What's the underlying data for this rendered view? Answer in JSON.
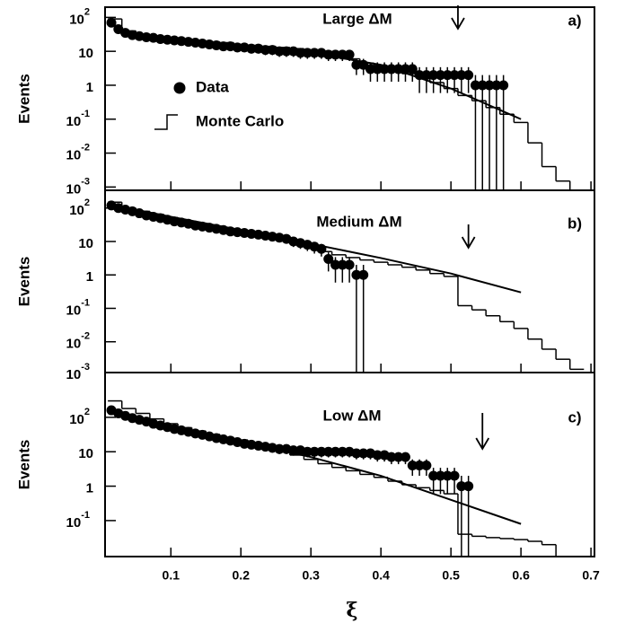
{
  "chart_data": [
    {
      "type": "scatter",
      "title": "Large ΔM",
      "panel": "a)",
      "ylabel": "Events",
      "log_y": true,
      "xlim": [
        0.006,
        0.705
      ],
      "xticks": [
        0.1,
        0.2,
        0.3,
        0.4,
        0.5,
        0.6,
        0.7
      ],
      "ylim": [
        0.0008,
        200
      ],
      "yticks": [
        {
          "value": 100,
          "label": "10",
          "exponent": "2"
        },
        10,
        1,
        {
          "value": 0.1,
          "label": "10",
          "exponent": "-1"
        },
        {
          "value": 0.01,
          "label": "10",
          "exponent": "-2"
        },
        {
          "value": 0.001,
          "label": "10",
          "exponent": "-3"
        }
      ],
      "arrow_x": 0.51,
      "color": "#000000",
      "data": {
        "name": "Data",
        "x": [
          0.015,
          0.025,
          0.035,
          0.045,
          0.055,
          0.065,
          0.075,
          0.085,
          0.095,
          0.105,
          0.115,
          0.125,
          0.135,
          0.145,
          0.155,
          0.165,
          0.175,
          0.185,
          0.195,
          0.205,
          0.215,
          0.225,
          0.235,
          0.245,
          0.255,
          0.265,
          0.275,
          0.285,
          0.295,
          0.305,
          0.315,
          0.325,
          0.335,
          0.345,
          0.355,
          0.365,
          0.375,
          0.385,
          0.395,
          0.405,
          0.415,
          0.425,
          0.435,
          0.445,
          0.455,
          0.465,
          0.475,
          0.485,
          0.495,
          0.505,
          0.515,
          0.525,
          0.535,
          0.545,
          0.555,
          0.565,
          0.575
        ],
        "values": [
          70,
          45,
          35,
          30,
          28,
          26,
          25,
          23,
          22,
          21,
          20,
          19,
          18,
          17,
          16,
          15,
          14,
          14,
          13,
          13,
          12,
          12,
          11,
          11,
          10,
          10,
          10,
          9,
          9,
          9,
          9,
          8,
          8,
          8,
          8,
          4,
          4,
          3,
          3,
          3,
          3,
          3,
          3,
          3,
          2,
          2,
          2,
          2,
          2,
          2,
          2,
          2,
          1,
          1,
          1,
          1,
          1
        ],
        "errors": [
          8.37,
          6.71,
          5.92,
          5.48,
          5.29,
          5.1,
          5,
          4.8,
          4.69,
          4.58,
          4.47,
          4.36,
          4.24,
          4.12,
          4,
          3.87,
          3.74,
          3.74,
          3.61,
          3.61,
          3.46,
          3.46,
          3.32,
          3.32,
          3.16,
          3.16,
          3.16,
          3,
          3,
          3,
          3,
          2.83,
          2.83,
          2.83,
          2.83,
          2,
          2,
          1.73,
          1.73,
          1.73,
          1.73,
          1.73,
          1.73,
          1.73,
          1.41,
          1.41,
          1.41,
          1.41,
          1.41,
          1.41,
          1.41,
          1.41,
          1,
          1,
          1,
          1,
          1
        ]
      },
      "monte_carlo": {
        "name": "Monte Carlo",
        "bins": [
          0.01,
          0.03,
          0.05,
          0.07,
          0.09,
          0.11,
          0.13,
          0.15,
          0.17,
          0.19,
          0.21,
          0.23,
          0.25,
          0.27,
          0.29,
          0.31,
          0.33,
          0.35,
          0.37,
          0.39,
          0.41,
          0.43,
          0.45,
          0.47,
          0.49,
          0.51,
          0.53,
          0.55,
          0.57,
          0.59,
          0.61,
          0.63,
          0.65,
          0.67,
          0.69
        ],
        "values": [
          90,
          40,
          32,
          28,
          25,
          23,
          21,
          19,
          18,
          16,
          15,
          14,
          13,
          12,
          11,
          10,
          8,
          6,
          4.5,
          3.5,
          2.8,
          2.2,
          1.7,
          1.2,
          0.8,
          0.5,
          0.35,
          0.22,
          0.14,
          0.08,
          0.02,
          0.004,
          0.0015,
          0.0008
        ]
      },
      "fit": {
        "x": [
          0.02,
          0.1,
          0.2,
          0.3,
          0.4,
          0.5,
          0.6
        ],
        "values": [
          40,
          24,
          15,
          9,
          4,
          0.8,
          0.1
        ]
      }
    },
    {
      "type": "scatter",
      "title": "Medium ΔM",
      "panel": "b)",
      "ylabel": "Events",
      "log_y": true,
      "xlim": [
        0.006,
        0.705
      ],
      "xticks": [
        0.1,
        0.2,
        0.3,
        0.4,
        0.5,
        0.6,
        0.7
      ],
      "ylim": [
        0.0012,
        340
      ],
      "yticks": [
        {
          "value": 100,
          "label": "10",
          "exponent": "2"
        },
        10,
        1,
        {
          "value": 0.1,
          "label": "10",
          "exponent": "-1"
        },
        {
          "value": 0.01,
          "label": "10",
          "exponent": "-2"
        },
        {
          "value": 0.001,
          "label": "10",
          "exponent": "-3"
        }
      ],
      "arrow_x": 0.525,
      "color": "#000000",
      "data": {
        "x": [
          0.015,
          0.025,
          0.035,
          0.045,
          0.055,
          0.065,
          0.075,
          0.085,
          0.095,
          0.105,
          0.115,
          0.125,
          0.135,
          0.145,
          0.155,
          0.165,
          0.175,
          0.185,
          0.195,
          0.205,
          0.215,
          0.225,
          0.235,
          0.245,
          0.255,
          0.265,
          0.275,
          0.285,
          0.295,
          0.305,
          0.315,
          0.325,
          0.335,
          0.345,
          0.355,
          0.365,
          0.375
        ],
        "values": [
          120,
          100,
          90,
          80,
          70,
          60,
          55,
          50,
          45,
          40,
          37,
          34,
          30,
          28,
          26,
          24,
          22,
          20,
          19,
          18,
          17,
          16,
          15,
          14,
          13,
          12,
          10,
          9,
          8,
          7,
          6,
          3,
          2,
          2,
          2,
          1,
          1
        ],
        "errors": [
          10.95,
          10,
          9.49,
          8.94,
          8.37,
          7.75,
          7.42,
          7.07,
          6.71,
          6.32,
          6.08,
          5.83,
          5.48,
          5.29,
          5.1,
          4.9,
          4.69,
          4.47,
          4.36,
          4.24,
          4.12,
          4,
          3.87,
          3.74,
          3.61,
          3.46,
          3.16,
          3,
          2.83,
          2.65,
          2.45,
          1.73,
          1.41,
          1.41,
          1.41,
          1,
          1
        ]
      },
      "monte_carlo": {
        "bins": [
          0.01,
          0.03,
          0.05,
          0.07,
          0.09,
          0.11,
          0.13,
          0.15,
          0.17,
          0.19,
          0.21,
          0.23,
          0.25,
          0.27,
          0.29,
          0.31,
          0.33,
          0.35,
          0.37,
          0.39,
          0.41,
          0.43,
          0.45,
          0.47,
          0.49,
          0.51,
          0.53,
          0.55,
          0.57,
          0.59,
          0.61,
          0.63,
          0.65,
          0.67,
          0.69
        ],
        "values": [
          150,
          100,
          80,
          65,
          52,
          42,
          35,
          29,
          24,
          20,
          17,
          14,
          11,
          9,
          7,
          5,
          4,
          3.3,
          2.8,
          2.4,
          2,
          1.7,
          1.4,
          1.1,
          0.9,
          0.12,
          0.09,
          0.06,
          0.04,
          0.025,
          0.012,
          0.006,
          0.003,
          0.0015
        ]
      },
      "fit": {
        "x": [
          0.02,
          0.1,
          0.2,
          0.3,
          0.4,
          0.5,
          0.6
        ],
        "values": [
          120,
          55,
          22,
          8.5,
          3.2,
          1.1,
          0.3
        ]
      }
    },
    {
      "type": "scatter",
      "title": "Low ΔM",
      "panel": "c)",
      "ylabel": "Events",
      "xlabel": "ξ",
      "log_y": true,
      "xlim": [
        0.006,
        0.705
      ],
      "xticks": [
        0.1,
        0.2,
        0.3,
        0.4,
        0.5,
        0.6,
        0.7
      ],
      "xtick_labels": true,
      "ylim": [
        0.009,
        2000
      ],
      "yticks": [
        {
          "value": 100,
          "label": "10",
          "exponent": "2"
        },
        10,
        1,
        {
          "value": 0.1,
          "label": "10",
          "exponent": "-1"
        }
      ],
      "arrow_x": 0.545,
      "color": "#000000",
      "data": {
        "x": [
          0.015,
          0.025,
          0.035,
          0.045,
          0.055,
          0.065,
          0.075,
          0.085,
          0.095,
          0.105,
          0.115,
          0.125,
          0.135,
          0.145,
          0.155,
          0.165,
          0.175,
          0.185,
          0.195,
          0.205,
          0.215,
          0.225,
          0.235,
          0.245,
          0.255,
          0.265,
          0.275,
          0.285,
          0.295,
          0.305,
          0.315,
          0.325,
          0.335,
          0.345,
          0.355,
          0.365,
          0.375,
          0.385,
          0.395,
          0.405,
          0.415,
          0.425,
          0.435,
          0.445,
          0.455,
          0.465,
          0.475,
          0.485,
          0.495,
          0.505,
          0.515,
          0.525
        ],
        "values": [
          160,
          130,
          110,
          95,
          85,
          75,
          65,
          58,
          52,
          46,
          42,
          38,
          34,
          31,
          28,
          25,
          23,
          21,
          19,
          17,
          16,
          15,
          14,
          13,
          12,
          12,
          11,
          11,
          10,
          10,
          10,
          10,
          10,
          10,
          10,
          9,
          9,
          9,
          8,
          8,
          7,
          7,
          7,
          4,
          4,
          4,
          2,
          2,
          2,
          2,
          1,
          1
        ],
        "errors": [
          12.65,
          11.4,
          10.49,
          9.75,
          9.22,
          8.66,
          8.06,
          7.62,
          7.21,
          6.78,
          6.48,
          6.16,
          5.83,
          5.57,
          5.29,
          5,
          4.8,
          4.58,
          4.36,
          4.12,
          4,
          3.87,
          3.74,
          3.61,
          3.46,
          3.46,
          3.32,
          3.32,
          3.16,
          3.16,
          3.16,
          3.16,
          3.16,
          3.16,
          3.16,
          3,
          3,
          3,
          2.83,
          2.83,
          2.65,
          2.65,
          2.65,
          2,
          2,
          2,
          1.41,
          1.41,
          1.41,
          1.41,
          1,
          1
        ]
      },
      "monte_carlo": {
        "bins": [
          0.01,
          0.03,
          0.05,
          0.07,
          0.09,
          0.11,
          0.13,
          0.15,
          0.17,
          0.19,
          0.21,
          0.23,
          0.25,
          0.27,
          0.29,
          0.31,
          0.33,
          0.35,
          0.37,
          0.39,
          0.41,
          0.43,
          0.45,
          0.47,
          0.49,
          0.51,
          0.53,
          0.55,
          0.57,
          0.59,
          0.61,
          0.63,
          0.65,
          0.67,
          0.69
        ],
        "values": [
          300,
          180,
          130,
          90,
          65,
          50,
          40,
          32,
          26,
          22,
          18,
          14,
          11,
          8,
          6,
          4.5,
          3.5,
          2.8,
          2.2,
          1.8,
          1.4,
          1.1,
          0.9,
          0.75,
          0.6,
          0.04,
          0.035,
          0.032,
          0.03,
          0.028,
          0.025,
          0.02,
          0.009,
          0.009
        ]
      },
      "fit": {
        "x": [
          0.02,
          0.1,
          0.2,
          0.3,
          0.4,
          0.5,
          0.6
        ],
        "values": [
          150,
          55,
          20,
          7,
          2,
          0.4,
          0.08
        ]
      }
    }
  ]
}
